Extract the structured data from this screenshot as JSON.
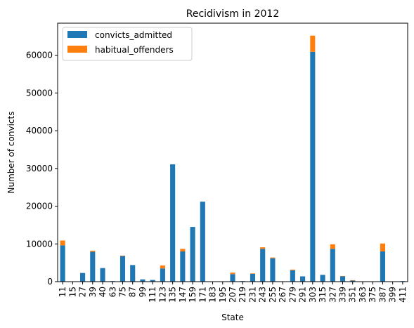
{
  "chart_data": {
    "type": "bar",
    "stacked": true,
    "title": "Recidivism in 2012",
    "xlabel": "State",
    "ylabel": "Number of convicts",
    "ylim": [
      0,
      68500
    ],
    "yticks": [
      0,
      10000,
      20000,
      30000,
      40000,
      50000,
      60000
    ],
    "grid": false,
    "legend_position": "top-left",
    "categories": [
      "11",
      "15",
      "27",
      "39",
      "40",
      "63",
      "75",
      "87",
      "99",
      "111",
      "123",
      "135",
      "147",
      "159",
      "171",
      "183",
      "195",
      "207",
      "219",
      "231",
      "243",
      "255",
      "267",
      "279",
      "291",
      "303",
      "315",
      "327",
      "339",
      "351",
      "363",
      "375",
      "387",
      "399",
      "411"
    ],
    "series": [
      {
        "name": "convicts_admitted",
        "color": "#1f77b4",
        "values": [
          9600,
          0,
          2300,
          7900,
          3600,
          150,
          6800,
          4400,
          600,
          450,
          3500,
          31100,
          8000,
          14500,
          21200,
          0,
          0,
          2000,
          150,
          2100,
          8700,
          6200,
          100,
          3000,
          1400,
          60900,
          1800,
          8700,
          1400,
          300,
          0,
          0,
          8000,
          0,
          150
        ]
      },
      {
        "name": "habitual_offenders",
        "color": "#ff7f0e",
        "values": [
          1300,
          0,
          0,
          300,
          0,
          0,
          100,
          0,
          0,
          0,
          800,
          0,
          700,
          0,
          0,
          0,
          0,
          400,
          0,
          100,
          400,
          200,
          0,
          200,
          0,
          4300,
          0,
          1200,
          100,
          100,
          0,
          0,
          2100,
          0,
          0
        ]
      }
    ]
  }
}
